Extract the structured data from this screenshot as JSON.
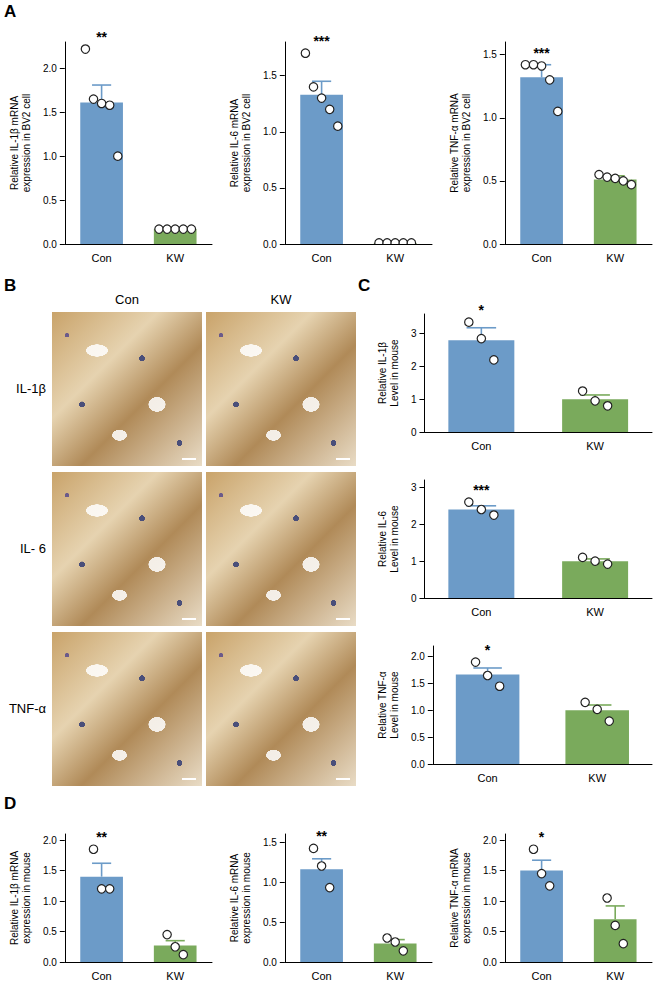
{
  "chart_data": [
    {
      "type": "bar",
      "y_label": "Relative IL-1β mRNA expression in BV2 cell",
      "categories": [
        "Con",
        "KW"
      ],
      "values": [
        1.61,
        0.17
      ],
      "errors": [
        0.2,
        0.01
      ],
      "points": [
        [
          2.22,
          1.65,
          1.6,
          1.58,
          1.0
        ],
        [
          0.17,
          0.17,
          0.17,
          0.17,
          0.17
        ]
      ],
      "colors": [
        "#6c9bc8",
        "#7aaa5c"
      ],
      "annotation": {
        "category": "Con",
        "text": "**"
      },
      "ylim": [
        0,
        2.3
      ],
      "yticks": [
        {
          "value": 0,
          "label": "0.0"
        },
        0.5,
        {
          "value": 1,
          "label": "1.0"
        },
        1.5,
        {
          "value": 2,
          "label": "2.0"
        }
      ],
      "grid": false
    },
    {
      "type": "bar",
      "y_label": "Relative IL-6 mRNA expression in BV2 cell",
      "categories": [
        "Con",
        "KW"
      ],
      "values": [
        1.33,
        0.01
      ],
      "errors": [
        0.12,
        0.003
      ],
      "points": [
        [
          1.7,
          1.4,
          1.3,
          1.2,
          1.05
        ],
        [
          0.01,
          0.01,
          0.01,
          0.01,
          0.01
        ]
      ],
      "colors": [
        "#6c9bc8",
        "#7aaa5c"
      ],
      "annotation": {
        "category": "Con",
        "text": "***"
      },
      "ylim": [
        0,
        1.8
      ],
      "yticks": [
        {
          "value": 0,
          "label": "0.0"
        },
        0.5,
        {
          "value": 1,
          "label": "1.0"
        },
        1.5
      ],
      "grid": false
    },
    {
      "type": "bar",
      "y_label": "Relative TNF-α mRNA expression in BV2 cell",
      "categories": [
        "Con",
        "KW"
      ],
      "values": [
        1.32,
        0.51
      ],
      "errors": [
        0.1,
        0.03
      ],
      "points": [
        [
          1.42,
          1.42,
          1.41,
          1.3,
          1.05
        ],
        [
          0.55,
          0.53,
          0.52,
          0.5,
          0.47
        ]
      ],
      "colors": [
        "#6c9bc8",
        "#7aaa5c"
      ],
      "annotation": {
        "category": "Con",
        "text": "***"
      },
      "ylim": [
        0,
        1.6
      ],
      "yticks": [
        {
          "value": 0,
          "label": "0.0"
        },
        0.5,
        {
          "value": 1,
          "label": "1.0"
        },
        1.5
      ],
      "grid": false
    },
    {
      "type": "bar",
      "y_label": "Relative IL-1β Level in mouse",
      "categories": [
        "Con",
        "KW"
      ],
      "values": [
        2.8,
        1.0
      ],
      "errors": [
        0.38,
        0.13
      ],
      "points": [
        [
          3.35,
          2.85,
          2.2
        ],
        [
          1.25,
          0.95,
          0.8
        ]
      ],
      "colors": [
        "#6c9bc8",
        "#7aaa5c"
      ],
      "annotation": {
        "category": "Con",
        "text": "*"
      },
      "ylim": [
        0,
        3.6
      ],
      "yticks": [
        0,
        1,
        2,
        3
      ],
      "grid": false
    },
    {
      "type": "bar",
      "y_label": "Relative IL-6 Level in mouse",
      "categories": [
        "Con",
        "KW"
      ],
      "values": [
        2.4,
        1.0
      ],
      "errors": [
        0.1,
        0.06
      ],
      "points": [
        [
          2.6,
          2.4,
          2.25
        ],
        [
          1.1,
          1.0,
          0.92
        ]
      ],
      "colors": [
        "#6c9bc8",
        "#7aaa5c"
      ],
      "annotation": {
        "category": "Con",
        "text": "***"
      },
      "ylim": [
        0,
        3.2
      ],
      "yticks": [
        0,
        1,
        2,
        3
      ],
      "grid": false
    },
    {
      "type": "bar",
      "y_label": "Relative TNF-α Level in mouse",
      "categories": [
        "Con",
        "KW"
      ],
      "values": [
        1.67,
        1.0
      ],
      "errors": [
        0.12,
        0.1
      ],
      "points": [
        [
          1.9,
          1.65,
          1.45
        ],
        [
          1.15,
          1.02,
          0.8
        ]
      ],
      "colors": [
        "#6c9bc8",
        "#7aaa5c"
      ],
      "annotation": {
        "category": "Con",
        "text": "*"
      },
      "ylim": [
        0,
        2.2
      ],
      "yticks": [
        {
          "value": 0,
          "label": "0.0"
        },
        0.5,
        {
          "value": 1,
          "label": "1.0"
        },
        1.5,
        {
          "value": 2,
          "label": "2.0"
        }
      ],
      "grid": false
    },
    {
      "type": "bar",
      "y_label": "Relative IL-1β mRNA expression in mouse",
      "categories": [
        "Con",
        "KW"
      ],
      "values": [
        1.4,
        0.27
      ],
      "errors": [
        0.22,
        0.08
      ],
      "points": [
        [
          1.85,
          1.2,
          1.2
        ],
        [
          0.45,
          0.25,
          0.12
        ]
      ],
      "colors": [
        "#6c9bc8",
        "#7aaa5c"
      ],
      "annotation": {
        "category": "Con",
        "text": "**"
      },
      "ylim": [
        0,
        2.1
      ],
      "yticks": [
        {
          "value": 0,
          "label": "0.0"
        },
        0.5,
        {
          "value": 1,
          "label": "1.0"
        },
        1.5,
        {
          "value": 2,
          "label": "2.0"
        }
      ],
      "grid": false
    },
    {
      "type": "bar",
      "y_label": "Relative IL-6 mRNA expression in mouse",
      "categories": [
        "Con",
        "KW"
      ],
      "values": [
        1.16,
        0.23
      ],
      "errors": [
        0.13,
        0.05
      ],
      "points": [
        [
          1.42,
          1.2,
          0.93
        ],
        [
          0.3,
          0.25,
          0.14
        ]
      ],
      "colors": [
        "#6c9bc8",
        "#7aaa5c"
      ],
      "annotation": {
        "category": "Con",
        "text": "**"
      },
      "ylim": [
        0,
        1.6
      ],
      "yticks": [
        {
          "value": 0,
          "label": "0.0"
        },
        0.5,
        {
          "value": 1,
          "label": "1.0"
        },
        1.5
      ],
      "grid": false
    },
    {
      "type": "bar",
      "y_label": "Relative TNF-α mRNA expression in mouse",
      "categories": [
        "Con",
        "KW"
      ],
      "values": [
        1.5,
        0.7
      ],
      "errors": [
        0.17,
        0.22
      ],
      "points": [
        [
          1.85,
          1.45,
          1.25
        ],
        [
          1.05,
          0.6,
          0.3
        ]
      ],
      "colors": [
        "#6c9bc8",
        "#7aaa5c"
      ],
      "annotation": {
        "category": "Con",
        "text": "*"
      },
      "ylim": [
        0,
        2.1
      ],
      "yticks": [
        {
          "value": 0,
          "label": "0.0"
        },
        0.5,
        {
          "value": 1,
          "label": "1.0"
        },
        1.5,
        {
          "value": 2,
          "label": "2.0"
        }
      ],
      "grid": false
    }
  ],
  "figure": {
    "panel_labels": [
      "A",
      "B",
      "C",
      "D"
    ],
    "image_panel": {
      "columns": [
        "Con",
        "KW"
      ],
      "rows": [
        "IL-1β",
        "IL- 6",
        "TNF-α"
      ]
    }
  }
}
